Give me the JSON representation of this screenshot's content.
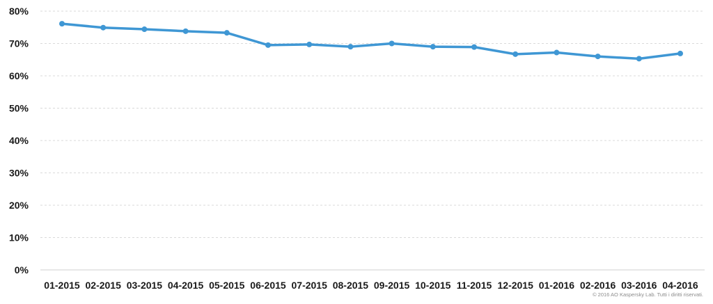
{
  "chart_data": {
    "type": "line",
    "categories": [
      "01-2015",
      "02-2015",
      "03-2015",
      "04-2015",
      "05-2015",
      "06-2015",
      "07-2015",
      "08-2015",
      "09-2015",
      "10-2015",
      "11-2015",
      "12-2015",
      "01-2016",
      "02-2016",
      "03-2016",
      "04-2016"
    ],
    "series": [
      {
        "values": [
          76.1,
          74.9,
          74.4,
          73.8,
          73.3,
          69.5,
          69.7,
          69.0,
          70.0,
          69.0,
          68.9,
          66.7,
          67.2,
          66.0,
          65.3,
          66.9
        ],
        "color": "#3f97d4"
      }
    ],
    "y_ticks": [
      "0%",
      "10%",
      "20%",
      "30%",
      "40%",
      "50%",
      "60%",
      "70%",
      "80%"
    ],
    "ylim": [
      0,
      80
    ],
    "grid": "horizontal-dashed",
    "legend": "none",
    "title": "",
    "xlabel": "",
    "ylabel": ""
  },
  "footer": {
    "copyright": "© 2016 AO Kaspersky Lab. Tutti i diritti riservati."
  }
}
